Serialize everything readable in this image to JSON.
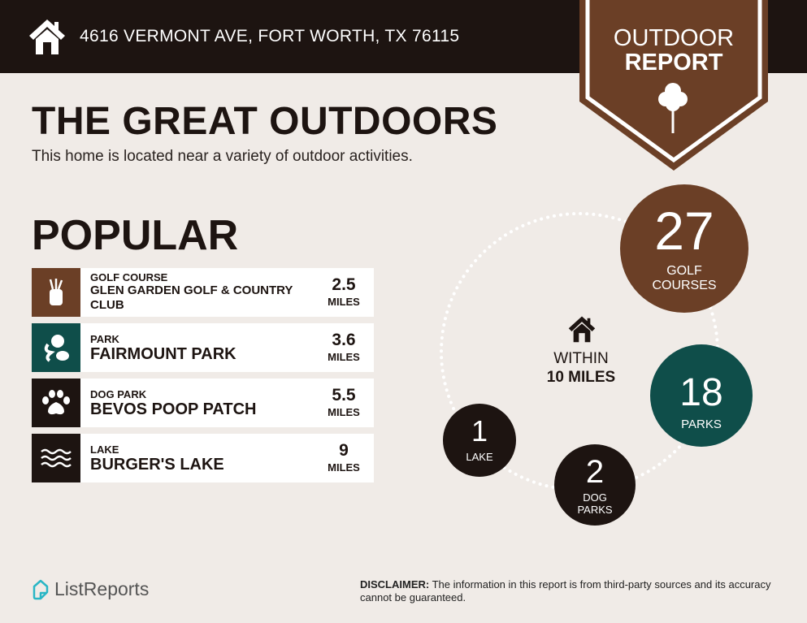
{
  "header": {
    "address": "4616 VERMONT AVE, FORT WORTH, TX 76115",
    "badge_line1": "OUTDOOR",
    "badge_line2": "REPORT"
  },
  "title": "THE GREAT OUTDOORS",
  "subtitle": "This home is located near a variety of outdoor activities.",
  "popular": {
    "heading": "POPULAR",
    "items": [
      {
        "category": "GOLF COURSE",
        "name": "GLEN GARDEN GOLF & COUNTRY CLUB",
        "distance": "2.5",
        "unit": "MILES",
        "icon": "golf-bag-icon",
        "color": "#6b3f26"
      },
      {
        "category": "PARK",
        "name": "FAIRMOUNT PARK",
        "distance": "3.6",
        "unit": "MILES",
        "icon": "park-icon",
        "color": "#0f4e4a"
      },
      {
        "category": "DOG PARK",
        "name": "BEVOS POOP PATCH",
        "distance": "5.5",
        "unit": "MILES",
        "icon": "paw-icon",
        "color": "#1d1411"
      },
      {
        "category": "LAKE",
        "name": "BURGER'S LAKE",
        "distance": "9",
        "unit": "MILES",
        "icon": "waves-icon",
        "color": "#1d1411"
      }
    ]
  },
  "summary": {
    "within_line1": "WITHIN",
    "within_line2": "10 MILES",
    "golf": {
      "count": "27",
      "label1": "GOLF",
      "label2": "COURSES",
      "color": "#6b3f26"
    },
    "parks": {
      "count": "18",
      "label": "PARKS",
      "color": "#0f4e4a"
    },
    "dog": {
      "count": "2",
      "label1": "DOG",
      "label2": "PARKS",
      "color": "#1d1411"
    },
    "lake": {
      "count": "1",
      "label": "LAKE",
      "color": "#1d1411"
    }
  },
  "footer": {
    "logo": "ListReports",
    "disclaimer_label": "DISCLAIMER:",
    "disclaimer": " The information in this report is from third-party sources and its accuracy cannot be guaranteed."
  }
}
